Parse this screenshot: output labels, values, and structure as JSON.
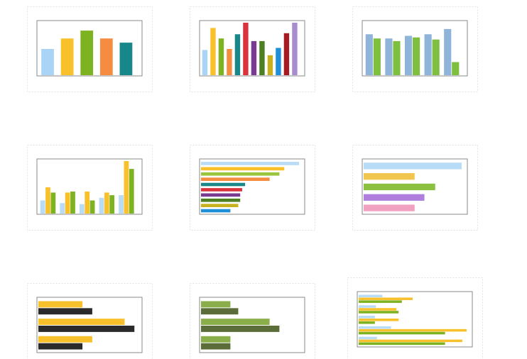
{
  "chart_data": [
    {
      "type": "bar",
      "orientation": "vertical",
      "ylim": [
        0,
        100
      ],
      "series": [
        {
          "colors": [
            "#aad4f5",
            "#f8c12c",
            "#7db320",
            "#f58c40",
            "#17878a"
          ],
          "values": [
            50,
            70,
            85,
            70,
            62
          ]
        }
      ]
    },
    {
      "type": "bar",
      "orientation": "vertical",
      "ylim": [
        0,
        100
      ],
      "series": [
        {
          "colors": [
            "#aad4f5",
            "#f8c12c",
            "#7db320",
            "#f58c40",
            "#17878a",
            "#d9343e",
            "#7b3a91",
            "#4e7f22",
            "#c8b11d",
            "#1f8fd8",
            "#a51b24",
            "#a98bd0"
          ],
          "values": [
            48,
            90,
            70,
            50,
            78,
            100,
            65,
            65,
            38,
            52,
            80,
            100
          ]
        }
      ]
    },
    {
      "type": "bar",
      "orientation": "vertical",
      "ylim": [
        0,
        100
      ],
      "series": [
        {
          "color": "#8fb4d9",
          "values": [
            78,
            70,
            75,
            78,
            88
          ]
        },
        {
          "color": "#7fbf3f",
          "values": [
            70,
            65,
            72,
            68,
            25
          ]
        }
      ]
    },
    {
      "type": "bar",
      "orientation": "vertical",
      "ylim": [
        0,
        100
      ],
      "series": [
        {
          "color": "#b9dcf6",
          "values": [
            25,
            20,
            18,
            30,
            35
          ]
        },
        {
          "color": "#f8c12c",
          "values": [
            50,
            40,
            42,
            40,
            100
          ]
        },
        {
          "color": "#7db320",
          "values": [
            40,
            42,
            25,
            35,
            85
          ]
        }
      ]
    },
    {
      "type": "bar",
      "orientation": "horizontal",
      "xlim": [
        0,
        100
      ],
      "series": [
        {
          "colors": [
            "#b9dcf6",
            "#f8c12c",
            "#9ac53c",
            "#f58c40",
            "#17878a",
            "#d9343e",
            "#7b3a91",
            "#4e7f22",
            "#c8b11d",
            "#1f8fd8"
          ],
          "values": [
            100,
            85,
            80,
            70,
            45,
            42,
            40,
            40,
            38,
            30
          ]
        }
      ]
    },
    {
      "type": "bar",
      "orientation": "horizontal",
      "xlim": [
        0,
        100
      ],
      "series": [
        {
          "colors": [
            "#b9dcf6",
            "#f2c64e",
            "#8cc041",
            "#b07fde",
            "#f0a1c0"
          ],
          "values": [
            100,
            52,
            73,
            62,
            52
          ]
        }
      ]
    },
    {
      "type": "bar",
      "orientation": "horizontal",
      "xlim": [
        0,
        100
      ],
      "series": [
        {
          "color": "#f8c12c",
          "values": [
            45,
            88,
            55
          ]
        },
        {
          "color": "#2a2a2a",
          "values": [
            55,
            98,
            45
          ]
        }
      ]
    },
    {
      "type": "bar",
      "orientation": "horizontal",
      "xlim": [
        0,
        100
      ],
      "series": [
        {
          "color": "#8aaf4a",
          "values": [
            30,
            70,
            30
          ]
        },
        {
          "color": "#5b6e3a",
          "values": [
            38,
            80,
            30
          ]
        }
      ]
    },
    {
      "type": "bar",
      "orientation": "horizontal",
      "xlim": [
        0,
        100
      ],
      "series": [
        {
          "color": "#b9dcf6",
          "values": [
            22,
            16,
            15,
            30,
            17
          ]
        },
        {
          "color": "#f8c12c",
          "values": [
            50,
            35,
            37,
            100,
            96
          ]
        },
        {
          "color": "#7db320",
          "values": [
            40,
            37,
            15,
            80,
            80
          ]
        }
      ]
    }
  ]
}
